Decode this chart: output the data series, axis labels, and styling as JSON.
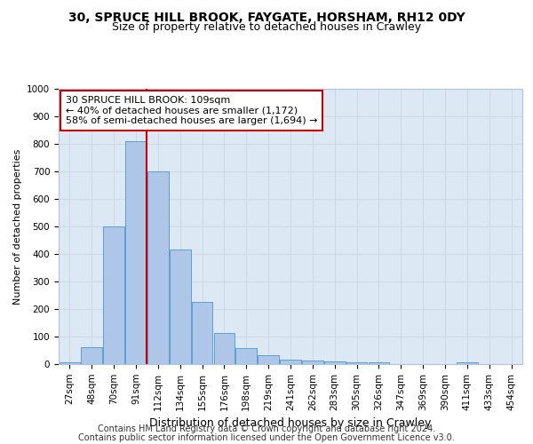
{
  "title_line1": "30, SPRUCE HILL BROOK, FAYGATE, HORSHAM, RH12 0DY",
  "title_line2": "Size of property relative to detached houses in Crawley",
  "xlabel": "Distribution of detached houses by size in Crawley",
  "ylabel": "Number of detached properties",
  "footnote_line1": "Contains HM Land Registry data © Crown copyright and database right 2024.",
  "footnote_line2": "Contains public sector information licensed under the Open Government Licence v3.0.",
  "annotation_line1": "30 SPRUCE HILL BROOK: 109sqm",
  "annotation_line2": "← 40% of detached houses are smaller (1,172)",
  "annotation_line3": "58% of semi-detached houses are larger (1,694) →",
  "bin_labels": [
    "27sqm",
    "48sqm",
    "70sqm",
    "91sqm",
    "112sqm",
    "134sqm",
    "155sqm",
    "176sqm",
    "198sqm",
    "219sqm",
    "241sqm",
    "262sqm",
    "283sqm",
    "305sqm",
    "326sqm",
    "347sqm",
    "369sqm",
    "390sqm",
    "411sqm",
    "433sqm",
    "454sqm"
  ],
  "bar_heights": [
    5,
    60,
    500,
    810,
    700,
    415,
    225,
    112,
    57,
    33,
    17,
    13,
    10,
    7,
    5,
    1,
    0,
    0,
    5,
    0,
    0
  ],
  "bar_color": "#aec6e8",
  "bar_edge_color": "#5a9fd4",
  "grid_color": "#d0d8e8",
  "background_color": "#dde8f5",
  "vline_x_index": 3.5,
  "vline_color": "#cc0000",
  "annotation_box_edge_color": "#cc0000",
  "ylim": [
    0,
    1000
  ],
  "yticks": [
    0,
    100,
    200,
    300,
    400,
    500,
    600,
    700,
    800,
    900,
    1000
  ],
  "title1_fontsize": 10,
  "title2_fontsize": 9,
  "ylabel_fontsize": 8,
  "xlabel_fontsize": 9,
  "tick_fontsize": 7.5,
  "annot_fontsize": 8,
  "footnote_fontsize": 7
}
